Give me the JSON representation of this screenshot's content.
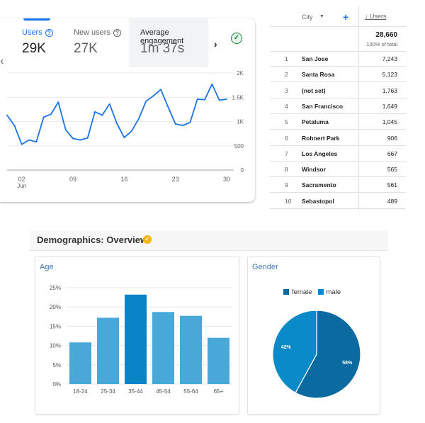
{
  "metrics": {
    "users": {
      "label": "Users",
      "value": "29K"
    },
    "new_users": {
      "label": "New users",
      "value": "27K"
    },
    "engagement": {
      "label": "Average engagement",
      "value": "1m 37s"
    }
  },
  "icons": {
    "help": "question-circle-icon",
    "check": "check-circle-icon",
    "prev": "chevron-left-icon",
    "next": "chevron-right-icon",
    "sort": "arrow-down-icon",
    "add": "plus-icon",
    "verified": "verified-badge-icon"
  },
  "colors": {
    "accent": "#1a73e8",
    "line": "#1a73e8",
    "bar": "#4aa8d8",
    "bar_highlight": "#0a84c6",
    "female": "#0b6aa0",
    "male": "#0a8ac8"
  },
  "city_table": {
    "col_city": "City",
    "col_users": "Users",
    "total": "28,660",
    "total_sub": "100% of total",
    "rows": [
      {
        "rank": "1",
        "city": "San Jose",
        "users": "7,243"
      },
      {
        "rank": "2",
        "city": "Santa Rosa",
        "users": "5,123"
      },
      {
        "rank": "3",
        "city": "(not set)",
        "users": "1,763"
      },
      {
        "rank": "4",
        "city": "San Francisco",
        "users": "1,649"
      },
      {
        "rank": "5",
        "city": "Petaluma",
        "users": "1,045"
      },
      {
        "rank": "6",
        "city": "Rohnert Park",
        "users": "906"
      },
      {
        "rank": "7",
        "city": "Los Angeles",
        "users": "667"
      },
      {
        "rank": "8",
        "city": "Windsor",
        "users": "565"
      },
      {
        "rank": "9",
        "city": "Sacramento",
        "users": "561"
      },
      {
        "rank": "10",
        "city": "Sebastopol",
        "users": "489"
      }
    ]
  },
  "demographics": {
    "title": "Demographics: Overview",
    "age_title": "Age",
    "gender_title": "Gender"
  },
  "chart_data": [
    {
      "type": "line",
      "x": [
        "2024-05-31",
        "2024-06-01",
        "2024-06-02",
        "2024-06-03",
        "2024-06-04",
        "2024-06-05",
        "2024-06-06",
        "2024-06-07",
        "2024-06-08",
        "2024-06-09",
        "2024-06-10",
        "2024-06-11",
        "2024-06-12",
        "2024-06-13",
        "2024-06-14",
        "2024-06-15",
        "2024-06-16",
        "2024-06-17",
        "2024-06-18",
        "2024-06-19",
        "2024-06-20",
        "2024-06-21",
        "2024-06-22",
        "2024-06-23",
        "2024-06-24",
        "2024-06-25",
        "2024-06-26",
        "2024-06-27",
        "2024-06-28",
        "2024-06-29",
        "2024-06-30"
      ],
      "series": [
        {
          "values": [
            1130,
            920,
            530,
            620,
            580,
            1090,
            1150,
            1400,
            830,
            650,
            620,
            660,
            1200,
            1130,
            1360,
            960,
            670,
            800,
            1060,
            1420,
            1530,
            1660,
            1300,
            950,
            920,
            980,
            1460,
            1450,
            1770,
            1440,
            1460
          ]
        }
      ],
      "x_ticks": [
        {
          "x": "2024-06-02",
          "label": "02",
          "sub": "Jun"
        },
        {
          "x": "2024-06-09",
          "label": "09"
        },
        {
          "x": "2024-06-16",
          "label": "16"
        },
        {
          "x": "2024-06-23",
          "label": "23"
        },
        {
          "x": "2024-06-30",
          "label": "30"
        }
      ],
      "y_ticks": [
        {
          "v": 0,
          "label": "0"
        },
        {
          "v": 500,
          "label": "500"
        },
        {
          "v": 1000,
          "label": "1K"
        },
        {
          "v": 1500,
          "label": "1.5K"
        },
        {
          "v": 2000,
          "label": "2K"
        }
      ],
      "ylim": [
        0,
        2000
      ],
      "grid": true
    },
    {
      "type": "bar",
      "title": "Age",
      "categories": [
        "18-24",
        "25-34",
        "35-44",
        "45-54",
        "55-64",
        "65+"
      ],
      "values": [
        10.8,
        17.2,
        23.2,
        18.7,
        17.7,
        12.0
      ],
      "y_ticks": [
        "0%",
        "5%",
        "10%",
        "15%",
        "20%",
        "25%"
      ],
      "ylim": [
        0,
        25
      ],
      "grid": true
    },
    {
      "type": "pie",
      "title": "Gender",
      "categories": [
        "female",
        "male"
      ],
      "values": [
        58,
        42
      ],
      "slice_labels": [
        "58%",
        "42%"
      ],
      "legend": "top"
    }
  ]
}
